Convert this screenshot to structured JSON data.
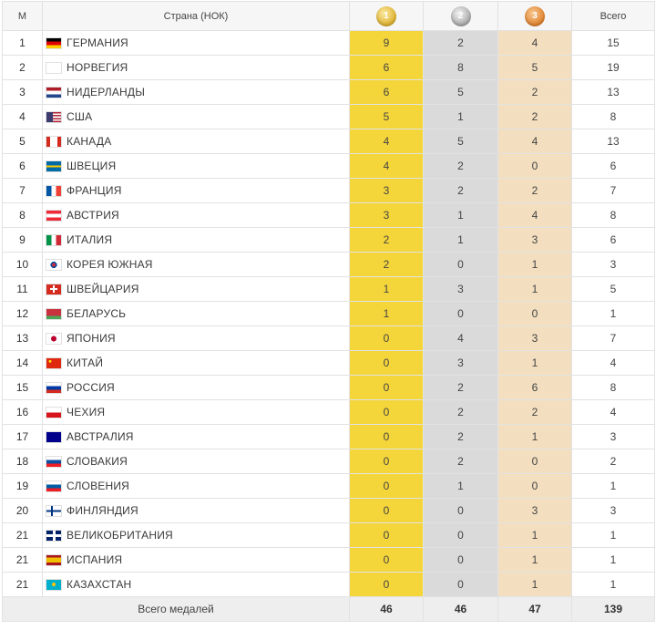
{
  "header": {
    "rank": "М",
    "country": "Страна (НОК)",
    "gold_icon_text": "1",
    "silver_icon_text": "2",
    "bronze_icon_text": "3",
    "total": "Всего"
  },
  "rows": [
    {
      "rank": "1",
      "country": "ГЕРМАНИЯ",
      "flag": "germany-flag",
      "gold": "9",
      "silver": "2",
      "bronze": "4",
      "total": "15"
    },
    {
      "rank": "2",
      "country": "НОРВЕГИЯ",
      "flag": "norway-flag",
      "gold": "6",
      "silver": "8",
      "bronze": "5",
      "total": "19"
    },
    {
      "rank": "3",
      "country": "НИДЕРЛАНДЫ",
      "flag": "netherlands-flag",
      "gold": "6",
      "silver": "5",
      "bronze": "2",
      "total": "13"
    },
    {
      "rank": "4",
      "country": "США",
      "flag": "usa-flag",
      "gold": "5",
      "silver": "1",
      "bronze": "2",
      "total": "8"
    },
    {
      "rank": "5",
      "country": "КАНАДА",
      "flag": "canada-flag",
      "gold": "4",
      "silver": "5",
      "bronze": "4",
      "total": "13"
    },
    {
      "rank": "6",
      "country": "ШВЕЦИЯ",
      "flag": "sweden-flag",
      "gold": "4",
      "silver": "2",
      "bronze": "0",
      "total": "6"
    },
    {
      "rank": "7",
      "country": "ФРАНЦИЯ",
      "flag": "france-flag",
      "gold": "3",
      "silver": "2",
      "bronze": "2",
      "total": "7"
    },
    {
      "rank": "8",
      "country": "АВСТРИЯ",
      "flag": "austria-flag",
      "gold": "3",
      "silver": "1",
      "bronze": "4",
      "total": "8"
    },
    {
      "rank": "9",
      "country": "ИТАЛИЯ",
      "flag": "italy-flag",
      "gold": "2",
      "silver": "1",
      "bronze": "3",
      "total": "6"
    },
    {
      "rank": "10",
      "country": "КОРЕЯ ЮЖНАЯ",
      "flag": "south-korea-flag",
      "gold": "2",
      "silver": "0",
      "bronze": "1",
      "total": "3"
    },
    {
      "rank": "11",
      "country": "ШВЕЙЦАРИЯ",
      "flag": "switzerland-flag",
      "gold": "1",
      "silver": "3",
      "bronze": "1",
      "total": "5"
    },
    {
      "rank": "12",
      "country": "БЕЛАРУСЬ",
      "flag": "belarus-flag",
      "gold": "1",
      "silver": "0",
      "bronze": "0",
      "total": "1"
    },
    {
      "rank": "13",
      "country": "ЯПОНИЯ",
      "flag": "japan-flag",
      "gold": "0",
      "silver": "4",
      "bronze": "3",
      "total": "7"
    },
    {
      "rank": "14",
      "country": "КИТАЙ",
      "flag": "china-flag",
      "gold": "0",
      "silver": "3",
      "bronze": "1",
      "total": "4"
    },
    {
      "rank": "15",
      "country": "РОССИЯ",
      "flag": "russia-flag",
      "gold": "0",
      "silver": "2",
      "bronze": "6",
      "total": "8"
    },
    {
      "rank": "16",
      "country": "ЧЕХИЯ",
      "flag": "czech-flag",
      "gold": "0",
      "silver": "2",
      "bronze": "2",
      "total": "4"
    },
    {
      "rank": "17",
      "country": "АВСТРАЛИЯ",
      "flag": "australia-flag",
      "gold": "0",
      "silver": "2",
      "bronze": "1",
      "total": "3"
    },
    {
      "rank": "18",
      "country": "СЛОВАКИЯ",
      "flag": "slovakia-flag",
      "gold": "0",
      "silver": "2",
      "bronze": "0",
      "total": "2"
    },
    {
      "rank": "19",
      "country": "СЛОВЕНИЯ",
      "flag": "slovenia-flag",
      "gold": "0",
      "silver": "1",
      "bronze": "0",
      "total": "1"
    },
    {
      "rank": "20",
      "country": "ФИНЛЯНДИЯ",
      "flag": "finland-flag",
      "gold": "0",
      "silver": "0",
      "bronze": "3",
      "total": "3"
    },
    {
      "rank": "21",
      "country": "ВЕЛИКОБРИТАНИЯ",
      "flag": "uk-flag",
      "gold": "0",
      "silver": "0",
      "bronze": "1",
      "total": "1"
    },
    {
      "rank": "21",
      "country": "ИСПАНИЯ",
      "flag": "spain-flag",
      "gold": "0",
      "silver": "0",
      "bronze": "1",
      "total": "1"
    },
    {
      "rank": "21",
      "country": "КАЗАХСТАН",
      "flag": "kazakhstan-flag",
      "gold": "0",
      "silver": "0",
      "bronze": "1",
      "total": "1"
    }
  ],
  "footer": {
    "label": "Всего медалей",
    "gold": "46",
    "silver": "46",
    "bronze": "47",
    "total": "139"
  },
  "colors": {
    "gold_column": "#f5d63a",
    "silver_column": "#dadada",
    "bronze_column": "#f3dfc0"
  }
}
